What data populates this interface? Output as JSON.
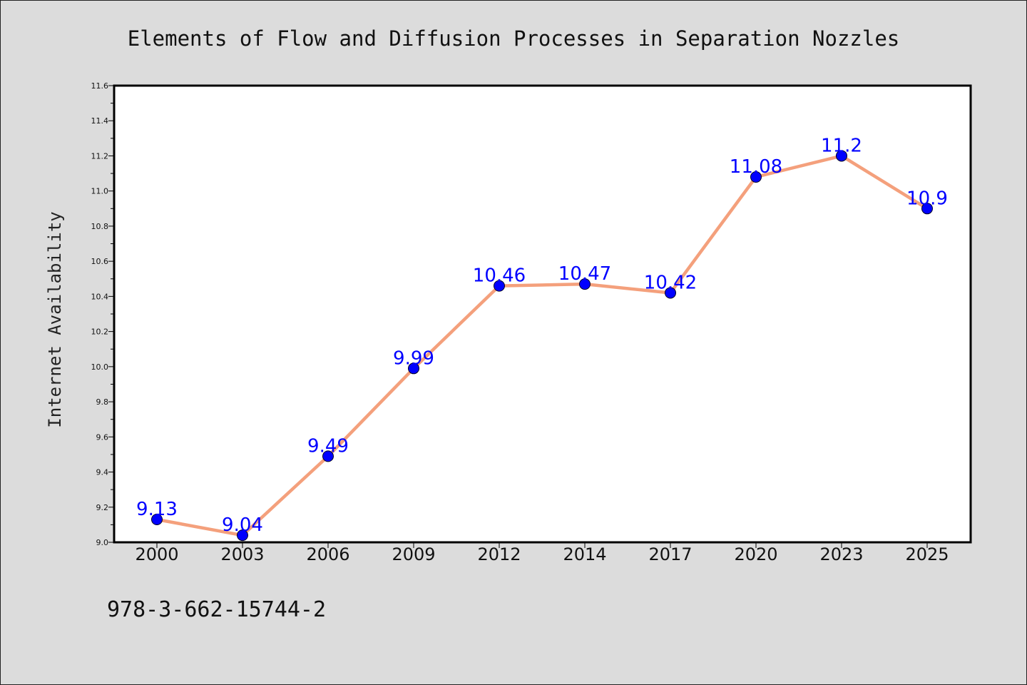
{
  "chart_data": {
    "type": "line",
    "title": "Elements of Flow and Diffusion Processes in Separation Nozzles",
    "xlabel": "",
    "ylabel": "Internet Availability",
    "categories": [
      "2000",
      "2003",
      "2006",
      "2009",
      "2012",
      "2014",
      "2017",
      "2020",
      "2023",
      "2025"
    ],
    "series": [
      {
        "values": [
          9.13,
          9.04,
          9.49,
          9.99,
          10.46,
          10.47,
          10.42,
          11.08,
          11.2,
          10.9
        ],
        "data_labels": [
          "9.13",
          "9.04",
          "9.49",
          "9.99",
          "10.46",
          "10.47",
          "10.42",
          "11.08",
          "11.2",
          "10.9"
        ],
        "line_color": "#f4a07c",
        "marker_color": "#0000ff"
      }
    ],
    "ylim": [
      9.0,
      11.6
    ],
    "y_ticks": [
      "9.0",
      "9.2",
      "9.4",
      "9.6",
      "9.8",
      "10.0",
      "10.2",
      "10.4",
      "10.6",
      "10.8",
      "11.0",
      "11.2",
      "11.4",
      "11.6"
    ],
    "grid": false,
    "legend": "none"
  },
  "annotation": "978-3-662-15744-2",
  "colors": {
    "background": "#dcdcdc",
    "plot_area": "#ffffff",
    "line": "#f4a07c",
    "marker": "#0000ff",
    "data_label": "#0000ff"
  }
}
